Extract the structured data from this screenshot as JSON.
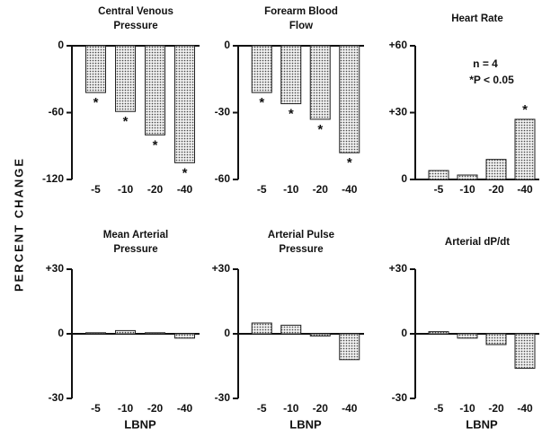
{
  "ylabel": "PERCENT CHANGE",
  "notes": [
    "n = 4",
    "*P < 0.05"
  ],
  "chart_data": [
    {
      "type": "bar",
      "title": [
        "Central Venous",
        "Pressure"
      ],
      "categories": [
        "-5",
        "-10",
        "-20",
        "-40"
      ],
      "values": [
        -42,
        -59,
        -80,
        -105
      ],
      "significance": [
        "*",
        "*",
        "*",
        "*"
      ],
      "ylim": [
        -120,
        0
      ],
      "yticks": [
        0,
        -60,
        -120
      ],
      "color": "#bbbbbb"
    },
    {
      "type": "bar",
      "title": [
        "Forearm Blood",
        "Flow"
      ],
      "categories": [
        "-5",
        "-10",
        "-20",
        "-40"
      ],
      "values": [
        -21,
        -26,
        -33,
        -48
      ],
      "significance": [
        "*",
        "*",
        "*",
        "*"
      ],
      "ylim": [
        -60,
        0
      ],
      "yticks": [
        0,
        -30,
        -60
      ],
      "color": "#bbbbbb"
    },
    {
      "type": "bar",
      "title": [
        "Heart Rate"
      ],
      "categories": [
        "-5",
        "-10",
        "-20",
        "-40"
      ],
      "values": [
        4,
        2,
        9,
        27
      ],
      "significance": [
        null,
        null,
        null,
        "*"
      ],
      "ylim": [
        0,
        60
      ],
      "yticks": [
        {
          "value": 60,
          "label": "+60"
        },
        {
          "value": 30,
          "label": "+30"
        },
        0
      ],
      "color": "#bbbbbb"
    },
    {
      "type": "bar",
      "title": [
        "Mean Arterial",
        "Pressure"
      ],
      "categories": [
        "-5",
        "-10",
        "-20",
        "-40"
      ],
      "values": [
        0.5,
        1.5,
        0.5,
        -2
      ],
      "xlabel": "LBNP",
      "ylim": [
        -30,
        30
      ],
      "yticks": [
        {
          "value": 30,
          "label": "+30"
        },
        0,
        -30
      ],
      "color": "#bbbbbb"
    },
    {
      "type": "bar",
      "title": [
        "Arterial Pulse",
        "Pressure"
      ],
      "categories": [
        "-5",
        "-10",
        "-20",
        "-40"
      ],
      "values": [
        5,
        4,
        -1,
        -12
      ],
      "xlabel": "LBNP",
      "ylim": [
        -30,
        30
      ],
      "yticks": [
        {
          "value": 30,
          "label": "+30"
        },
        0,
        -30
      ],
      "color": "#bbbbbb"
    },
    {
      "type": "bar",
      "title": [
        "Arterial dP/dt"
      ],
      "categories": [
        "-5",
        "-10",
        "-20",
        "-40"
      ],
      "values": [
        1,
        -2,
        -5,
        -16
      ],
      "xlabel": "LBNP",
      "ylim": [
        -30,
        30
      ],
      "yticks": [
        {
          "value": 30,
          "label": "+30"
        },
        0,
        -30
      ],
      "color": "#bbbbbb"
    }
  ]
}
